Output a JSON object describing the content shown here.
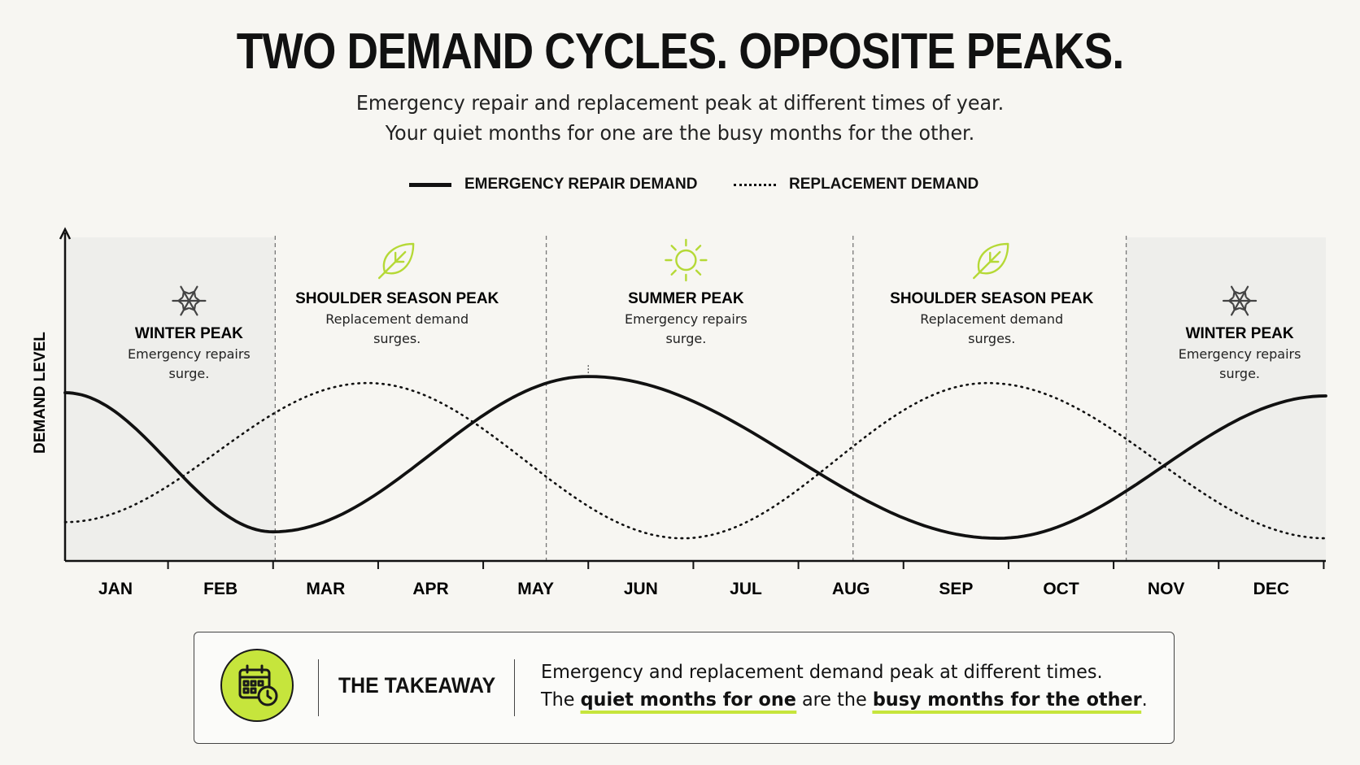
{
  "header": {
    "title": "TWO DEMAND CYCLES. OPPOSITE PEAKS.",
    "subtitle_line1": "Emergency repair and replacement peak at different times of year.",
    "subtitle_line2": "Your quiet months for one are the busy months for the other."
  },
  "colors": {
    "background": "#f7f6f2",
    "accent_green": "#c6e53c",
    "icon_green": "#b5d936",
    "line": "#111111",
    "shade": "#eeeeeb"
  },
  "chart_data": {
    "type": "line",
    "ylabel": "DEMAND LEVEL",
    "xlabel": "",
    "categories": [
      "JAN",
      "FEB",
      "MAR",
      "APR",
      "MAY",
      "JUN",
      "JUL",
      "AUG",
      "SEP",
      "OCT",
      "NOV",
      "DEC"
    ],
    "x_range": [
      0.52,
      12.52
    ],
    "ylim": [
      0,
      100
    ],
    "y_ticks_shown": false,
    "grid": false,
    "legend_position": "top-center",
    "series": [
      {
        "name": "EMERGENCY REPAIR DEMAND",
        "style": "solid",
        "points": [
          [
            0.52,
            52
          ],
          [
            2.5,
            9
          ],
          [
            5.5,
            57
          ],
          [
            9.4,
            7
          ],
          [
            12.52,
            51
          ]
        ]
      },
      {
        "name": "REPLACEMENT DEMAND",
        "style": "dotted",
        "points": [
          [
            0.52,
            12
          ],
          [
            3.4,
            55
          ],
          [
            6.4,
            7
          ],
          [
            9.3,
            55
          ],
          [
            12.52,
            7
          ]
        ]
      }
    ],
    "season_dividers": [
      2.52,
      5.1,
      8.02,
      10.62
    ],
    "shaded_ranges": [
      [
        0.52,
        2.52
      ],
      [
        10.62,
        12.52
      ]
    ],
    "annotations": [
      {
        "title": "WINTER PEAK",
        "text_line1": "Emergency repairs",
        "text_line2": "surge.",
        "icon": "snowflake-icon"
      },
      {
        "title": "SHOULDER SEASON PEAK",
        "text_line1": "Replacement demand",
        "text_line2": "surges.",
        "icon": "leaf-icon"
      },
      {
        "title": "SUMMER PEAK",
        "text_line1": "Emergency repairs",
        "text_line2": "surge.",
        "icon": "sun-icon"
      },
      {
        "title": "SHOULDER SEASON PEAK",
        "text_line1": "Replacement demand",
        "text_line2": "surges.",
        "icon": "leaf-icon"
      },
      {
        "title": "WINTER PEAK",
        "text_line1": "Emergency repairs",
        "text_line2": "surge.",
        "icon": "snowflake-icon"
      }
    ]
  },
  "legend": {
    "items": [
      {
        "label": "EMERGENCY REPAIR DEMAND",
        "style": "solid"
      },
      {
        "label": "REPLACEMENT DEMAND",
        "style": "dotted"
      }
    ]
  },
  "takeaway": {
    "icon": "calendar-clock-icon",
    "title": "THE TAKEAWAY",
    "line1": "Emergency and replacement demand peak at different times.",
    "line2_pre": "The",
    "line2_hl1": "quiet months for one",
    "line2_mid": "are the",
    "line2_hl2": "busy months for the other",
    "line2_post": "."
  }
}
